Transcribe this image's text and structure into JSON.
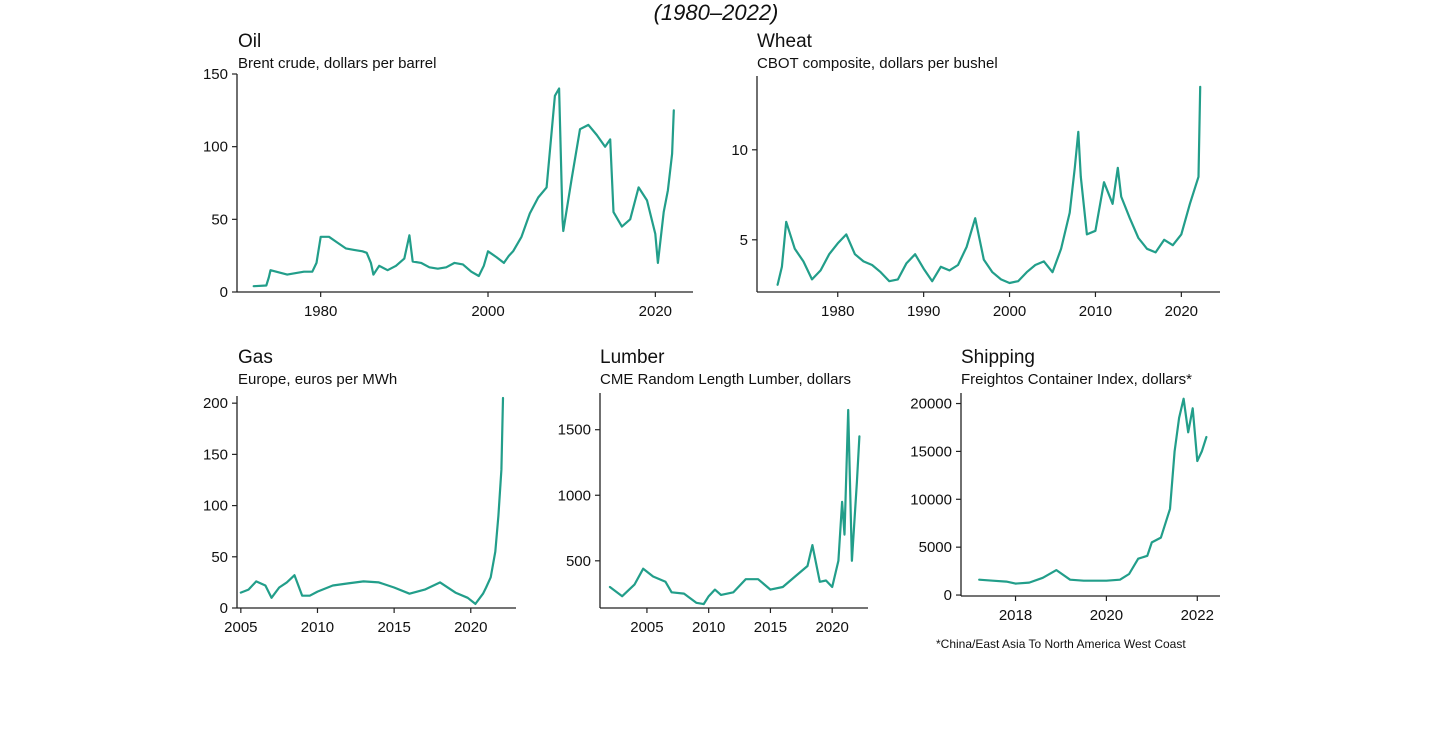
{
  "page": {
    "title": "(1980–2022)",
    "footnote": "*China/East Asia To North America West Coast",
    "line_color": "#229e8a"
  },
  "chart_data": [
    {
      "id": "oil",
      "type": "line",
      "title": "Oil",
      "subtitle": "Brent crude, dollars per barrel",
      "xlim": [
        1970,
        2024.5
      ],
      "ylim": [
        0,
        150
      ],
      "xticks": [
        1980,
        2000,
        2020
      ],
      "yticks": [
        0,
        50,
        100,
        150
      ],
      "series": [
        {
          "name": "Oil",
          "x": [
            1972,
            1973.5,
            1973.8,
            1974,
            1976,
            1978,
            1979,
            1979.5,
            1980,
            1981,
            1982,
            1983,
            1984,
            1985,
            1985.5,
            1986,
            1986.3,
            1987,
            1988,
            1989,
            1990,
            1990.6,
            1991,
            1992,
            1993,
            1994,
            1995,
            1996,
            1997,
            1998,
            1998.9,
            1999.5,
            2000,
            2001,
            2001.9,
            2002.5,
            2003,
            2004,
            2005,
            2006,
            2007,
            2008,
            2008.5,
            2008.9,
            2009,
            2010,
            2011,
            2012,
            2013,
            2014,
            2014.6,
            2015,
            2016,
            2017,
            2018,
            2019,
            2020,
            2020.3,
            2021,
            2021.5,
            2022,
            2022.2
          ],
          "y": [
            4,
            4.5,
            10,
            15,
            12,
            14,
            14,
            20,
            38,
            38,
            34,
            30,
            29,
            28,
            27,
            20,
            12,
            18,
            15,
            18,
            23,
            39,
            21,
            20,
            17,
            16,
            17,
            20,
            19,
            14,
            11,
            18,
            28,
            24,
            20,
            25,
            28,
            38,
            54,
            65,
            72,
            135,
            140,
            50,
            42,
            78,
            112,
            115,
            108,
            100,
            105,
            55,
            45,
            50,
            72,
            63,
            40,
            20,
            55,
            70,
            95,
            125
          ]
        }
      ]
    },
    {
      "id": "wheat",
      "type": "line",
      "title": "Wheat",
      "subtitle": "CBOT composite, dollars per bushel",
      "xlim": [
        1970.6,
        2024.5
      ],
      "ylim": [
        2.1,
        14.1
      ],
      "xticks": [
        1980,
        1990,
        2000,
        2010,
        2020
      ],
      "yticks": [
        5,
        10
      ],
      "series": [
        {
          "name": "Wheat",
          "x": [
            1973,
            1973.5,
            1974,
            1975,
            1976,
            1977,
            1978,
            1979,
            1980,
            1981,
            1982,
            1983,
            1984,
            1985,
            1986,
            1987,
            1988,
            1989,
            1990,
            1991,
            1992,
            1993,
            1994,
            1995,
            1996,
            1997,
            1998,
            1999,
            2000,
            2001,
            2002,
            2003,
            2004,
            2005,
            2006,
            2007,
            2007.6,
            2008,
            2008.3,
            2009,
            2010,
            2011,
            2012,
            2012.6,
            2013,
            2014,
            2015,
            2016,
            2017,
            2018,
            2019,
            2020,
            2021,
            2022,
            2022.2
          ],
          "y": [
            2.5,
            3.5,
            6,
            4.5,
            3.8,
            2.8,
            3.3,
            4.2,
            4.8,
            5.3,
            4.2,
            3.8,
            3.6,
            3.2,
            2.7,
            2.8,
            3.7,
            4.2,
            3.4,
            2.7,
            3.5,
            3.3,
            3.6,
            4.6,
            6.2,
            3.9,
            3.2,
            2.8,
            2.6,
            2.7,
            3.2,
            3.6,
            3.8,
            3.2,
            4.5,
            6.5,
            9,
            11,
            8.5,
            5.3,
            5.5,
            8.2,
            7,
            9,
            7.4,
            6.2,
            5.1,
            4.5,
            4.3,
            5,
            4.7,
            5.3,
            7,
            8.5,
            13.5
          ]
        }
      ]
    },
    {
      "id": "gas",
      "type": "line",
      "title": "Gas",
      "subtitle": "Europe, euros per MWh",
      "xlim": [
        2004.75,
        2022.95
      ],
      "ylim": [
        0,
        207
      ],
      "xticks": [
        2005,
        2010,
        2015,
        2020
      ],
      "yticks": [
        0,
        50,
        100,
        150,
        200
      ],
      "series": [
        {
          "name": "Gas",
          "x": [
            2005,
            2005.5,
            2006,
            2006.6,
            2007,
            2007.5,
            2008,
            2008.5,
            2009,
            2009.5,
            2010,
            2011,
            2012,
            2013,
            2014,
            2015,
            2016,
            2017,
            2018,
            2019,
            2019.8,
            2020.3,
            2020.8,
            2021,
            2021.3,
            2021.6,
            2021.8,
            2022,
            2022.1
          ],
          "y": [
            15,
            18,
            26,
            22,
            10,
            20,
            25,
            32,
            12,
            12,
            16,
            22,
            24,
            26,
            25,
            20,
            14,
            18,
            25,
            15,
            10,
            4,
            14,
            20,
            30,
            55,
            90,
            135,
            205
          ]
        }
      ]
    },
    {
      "id": "lumber",
      "type": "line",
      "title": "Lumber",
      "subtitle": "CME Random Length Lumber, dollars",
      "xlim": [
        2001.2,
        2022.9
      ],
      "ylim": [
        140,
        1780
      ],
      "xticks": [
        2005,
        2010,
        2015,
        2020
      ],
      "yticks": [
        500,
        1000,
        1500
      ],
      "series": [
        {
          "name": "Lumber",
          "x": [
            2002,
            2003,
            2004,
            2004.7,
            2005.5,
            2006.5,
            2007,
            2008,
            2009,
            2009.6,
            2010,
            2010.5,
            2011,
            2012,
            2013,
            2014,
            2015,
            2016,
            2017,
            2018,
            2018.4,
            2019,
            2019.5,
            2020,
            2020.5,
            2020.8,
            2021,
            2021.3,
            2021.6,
            2022,
            2022.2
          ],
          "y": [
            300,
            230,
            320,
            440,
            380,
            340,
            260,
            250,
            180,
            170,
            230,
            280,
            240,
            260,
            360,
            360,
            280,
            300,
            380,
            460,
            620,
            340,
            350,
            300,
            500,
            950,
            700,
            1650,
            500,
            1100,
            1450
          ]
        }
      ]
    },
    {
      "id": "shipping",
      "type": "line",
      "title": "Shipping",
      "subtitle": "Freightos Container Index, dollars*",
      "xlim": [
        2016.8,
        2022.5
      ],
      "ylim": [
        -100,
        21100
      ],
      "xticks": [
        2018,
        2020,
        2022
      ],
      "yticks": [
        0,
        5000,
        10000,
        15000,
        20000
      ],
      "series": [
        {
          "name": "Shipping",
          "x": [
            2017.2,
            2017.5,
            2017.8,
            2018,
            2018.3,
            2018.6,
            2018.9,
            2019.2,
            2019.5,
            2019.8,
            2020,
            2020.3,
            2020.5,
            2020.7,
            2020.9,
            2021,
            2021.2,
            2021.4,
            2021.5,
            2021.6,
            2021.7,
            2021.8,
            2021.9,
            2022,
            2022.1,
            2022.2
          ],
          "y": [
            1600,
            1500,
            1400,
            1200,
            1300,
            1800,
            2600,
            1600,
            1500,
            1500,
            1500,
            1600,
            2200,
            3800,
            4100,
            5500,
            6000,
            9000,
            15000,
            18500,
            20500,
            17000,
            19500,
            14000,
            15000,
            16500
          ]
        }
      ]
    }
  ]
}
